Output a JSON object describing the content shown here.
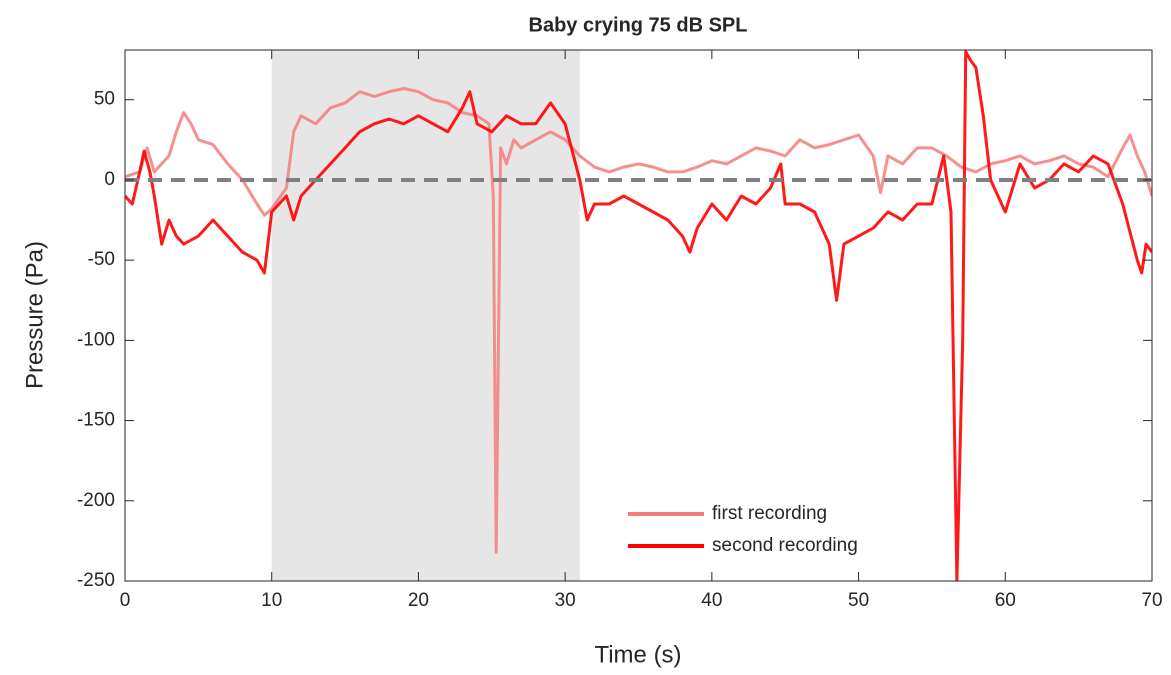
{
  "chart_data": {
    "type": "line",
    "title": "Baby crying 75 dB SPL",
    "x_label": "Time (s)",
    "y_label": "Pressure (Pa)",
    "xlim": [
      0,
      70
    ],
    "ylim": [
      -250,
      81
    ],
    "xticks": [
      0,
      10,
      20,
      30,
      40,
      50,
      60,
      70
    ],
    "yticks": [
      -250,
      -200,
      -150,
      -100,
      -50,
      0,
      50
    ],
    "shaded_region": [
      10,
      31
    ],
    "reference_line": 0,
    "legend": "lower center",
    "series": [
      {
        "name": "first recording",
        "color": "#f47c7c",
        "x": [
          0,
          1,
          1.5,
          2,
          3,
          3.5,
          4,
          4.5,
          5,
          6,
          7,
          8,
          9,
          9.5,
          10,
          11,
          11.5,
          12,
          13,
          14,
          15,
          16,
          17,
          18,
          19,
          20,
          21,
          22,
          23,
          24,
          24.8,
          25.1,
          25.3,
          25.6,
          26,
          26.5,
          27,
          28,
          29,
          30,
          31,
          32,
          33,
          34,
          35,
          36,
          37,
          38,
          39,
          40,
          41,
          42,
          43,
          44,
          45,
          46,
          47,
          48,
          49,
          50,
          51,
          51.5,
          52,
          53,
          54,
          55,
          56,
          57,
          58,
          59,
          60,
          61,
          62,
          63,
          64,
          65,
          66,
          67,
          68,
          68.5,
          69,
          69.5,
          70
        ],
        "values": [
          2,
          5,
          20,
          5,
          15,
          30,
          42,
          35,
          25,
          22,
          10,
          0,
          -15,
          -22,
          -18,
          -5,
          30,
          40,
          35,
          45,
          48,
          55,
          52,
          55,
          57,
          55,
          50,
          48,
          42,
          40,
          35,
          -10,
          -232,
          20,
          10,
          25,
          20,
          25,
          30,
          25,
          15,
          8,
          5,
          8,
          10,
          8,
          5,
          5,
          8,
          12,
          10,
          15,
          20,
          18,
          15,
          25,
          20,
          22,
          25,
          28,
          15,
          -8,
          15,
          10,
          20,
          20,
          15,
          8,
          5,
          10,
          12,
          15,
          10,
          12,
          15,
          10,
          8,
          2,
          20,
          28,
          15,
          5,
          -10
        ]
      },
      {
        "name": "second recording",
        "color": "#ff0000",
        "x": [
          0,
          0.5,
          1,
          1.3,
          1.7,
          2,
          2.5,
          3,
          3.5,
          4,
          5,
          6,
          7,
          8,
          9,
          9.5,
          10,
          11,
          11.5,
          12,
          13,
          14,
          15,
          16,
          17,
          18,
          19,
          20,
          21,
          22,
          23,
          23.5,
          24,
          25,
          26,
          27,
          28,
          29,
          30,
          31,
          31.5,
          32,
          33,
          34,
          35,
          36,
          37,
          38,
          38.5,
          39,
          40,
          41,
          42,
          43,
          44,
          44.7,
          45,
          46,
          47,
          48,
          48.5,
          49,
          50,
          51,
          52,
          53,
          54,
          55,
          55.8,
          56.3,
          56.7,
          57.1,
          57.3,
          57.6,
          58,
          58.5,
          59,
          60,
          61,
          62,
          63,
          64,
          65,
          66,
          67,
          68,
          69,
          69.3,
          69.6,
          70
        ],
        "values": [
          -10,
          -15,
          5,
          18,
          5,
          -10,
          -40,
          -25,
          -35,
          -40,
          -35,
          -25,
          -35,
          -45,
          -50,
          -58,
          -20,
          -10,
          -25,
          -10,
          0,
          10,
          20,
          30,
          35,
          38,
          35,
          40,
          35,
          30,
          45,
          55,
          35,
          30,
          40,
          35,
          35,
          48,
          35,
          0,
          -25,
          -15,
          -15,
          -10,
          -15,
          -20,
          -25,
          -35,
          -45,
          -30,
          -15,
          -25,
          -10,
          -15,
          -5,
          10,
          -15,
          -15,
          -20,
          -40,
          -75,
          -40,
          -35,
          -30,
          -20,
          -25,
          -15,
          -15,
          15,
          -20,
          -250,
          -100,
          80,
          75,
          70,
          40,
          0,
          -20,
          10,
          -5,
          0,
          10,
          5,
          15,
          10,
          -15,
          -50,
          -58,
          -40,
          -45
        ]
      }
    ]
  }
}
